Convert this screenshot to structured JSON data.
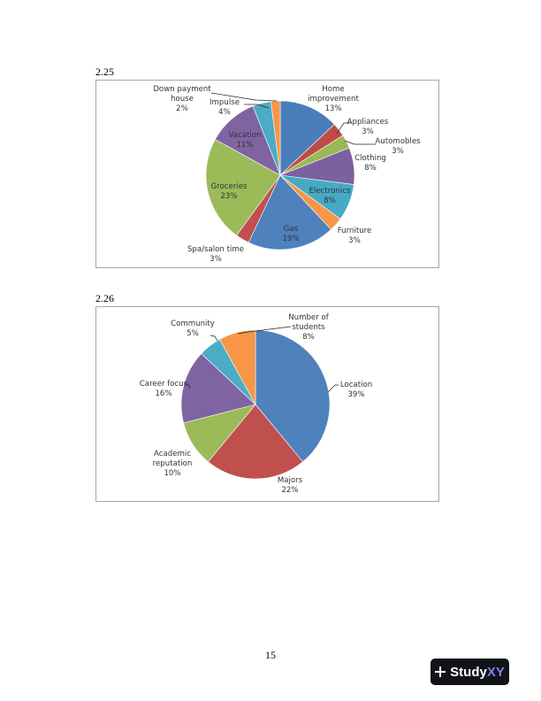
{
  "sections": [
    {
      "label": "2.25"
    },
    {
      "label": "2.26"
    }
  ],
  "chart_data": [
    {
      "type": "pie",
      "slices": [
        {
          "name": "Home improvement",
          "value": 13,
          "pct": "13%",
          "color": "#4a7ebb"
        },
        {
          "name": "Appliances",
          "value": 3,
          "pct": "3%",
          "color": "#be4b48"
        },
        {
          "name": "Automobles",
          "value": 3,
          "pct": "3%",
          "color": "#98b954"
        },
        {
          "name": "Clothing",
          "value": 8,
          "pct": "8%",
          "color": "#7d60a0"
        },
        {
          "name": "Electronics",
          "value": 8,
          "pct": "8%",
          "color": "#46aac5"
        },
        {
          "name": "Furniture",
          "value": 3,
          "pct": "3%",
          "color": "#f79646"
        },
        {
          "name": "Gas",
          "value": 19,
          "pct": "19%",
          "color": "#4f81bd"
        },
        {
          "name": "Spa/salon time",
          "value": 3,
          "pct": "3%",
          "color": "#c0504d"
        },
        {
          "name": "Groceries",
          "value": 23,
          "pct": "23%",
          "color": "#9bbb59"
        },
        {
          "name": "Vacation",
          "value": 11,
          "pct": "11%",
          "color": "#8064a2"
        },
        {
          "name": "Impulse",
          "value": 4,
          "pct": "4%",
          "color": "#4bacc6"
        },
        {
          "name": "Down payment house",
          "value": 2,
          "pct": "2%",
          "color": "#f79646"
        }
      ]
    },
    {
      "type": "pie",
      "slices": [
        {
          "name": "Location",
          "value": 39,
          "pct": "39%",
          "color": "#4f81bd"
        },
        {
          "name": "Majors",
          "value": 22,
          "pct": "22%",
          "color": "#c0504d"
        },
        {
          "name": "Academic reputation",
          "value": 10,
          "pct": "10%",
          "color": "#9bbb59"
        },
        {
          "name": "Career focus",
          "value": 16,
          "pct": "16%",
          "color": "#8064a2"
        },
        {
          "name": "Community",
          "value": 5,
          "pct": "5%",
          "color": "#4bacc6"
        },
        {
          "name": "Number of students",
          "value": 8,
          "pct": "8%",
          "color": "#f79646"
        }
      ]
    }
  ],
  "footer": {
    "page_number": "15",
    "logo": {
      "plus": "+",
      "word_a": "Study",
      "word_b": "XY"
    }
  }
}
